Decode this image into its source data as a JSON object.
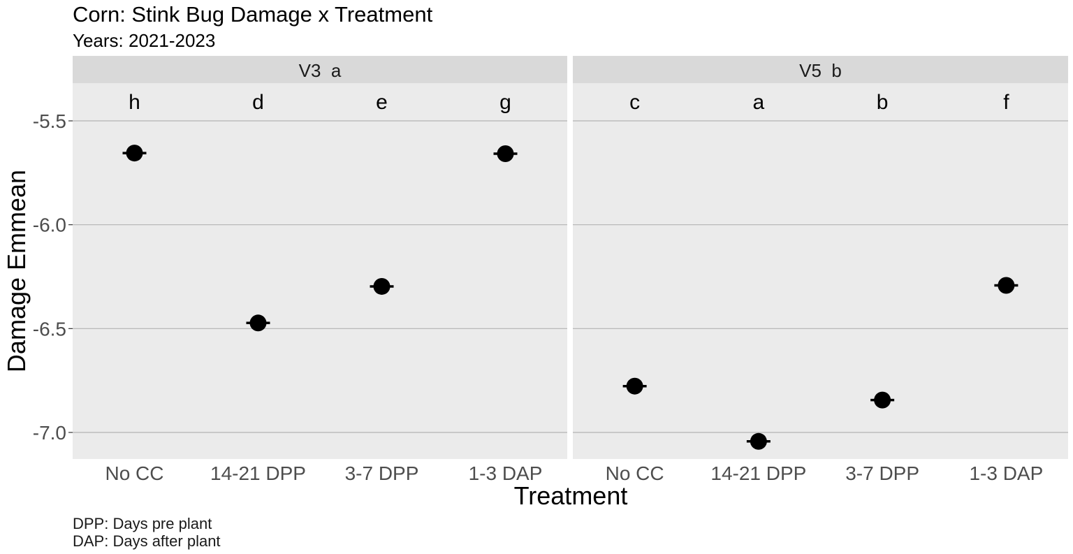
{
  "chart_data": {
    "type": "scatter",
    "title": "Corn: Stink Bug Damage x Treatment",
    "subtitle": "Years: 2021-2023",
    "xlabel": "Treatment",
    "ylabel": "Damage Emmean",
    "categories": [
      "No CC",
      "14-21 DPP",
      "3-7 DPP",
      "1-3 DAP"
    ],
    "ylim": [
      -7.125,
      -5.18
    ],
    "yticks": [
      -5.5,
      -6.0,
      -6.5,
      -7.0
    ],
    "ytick_labels": [
      "-5.5",
      "-6.0",
      "-6.5",
      "-7.0"
    ],
    "grid": true,
    "point_color": "#000000",
    "panel_bg": "#ebebeb",
    "strip_bg": "#d9d9d9",
    "panels": [
      {
        "strip_label": "V3  a",
        "values": [
          -5.655,
          -6.473,
          -6.297,
          -5.658
        ],
        "letters": [
          "h",
          "d",
          "e",
          "g"
        ]
      },
      {
        "strip_label": "V5  b",
        "values": [
          -6.777,
          -7.043,
          -6.844,
          -6.292
        ],
        "letters": [
          "c",
          "a",
          "b",
          "f"
        ]
      }
    ],
    "caption": [
      "DPP: Days pre plant",
      "DAP: Days after plant"
    ]
  }
}
